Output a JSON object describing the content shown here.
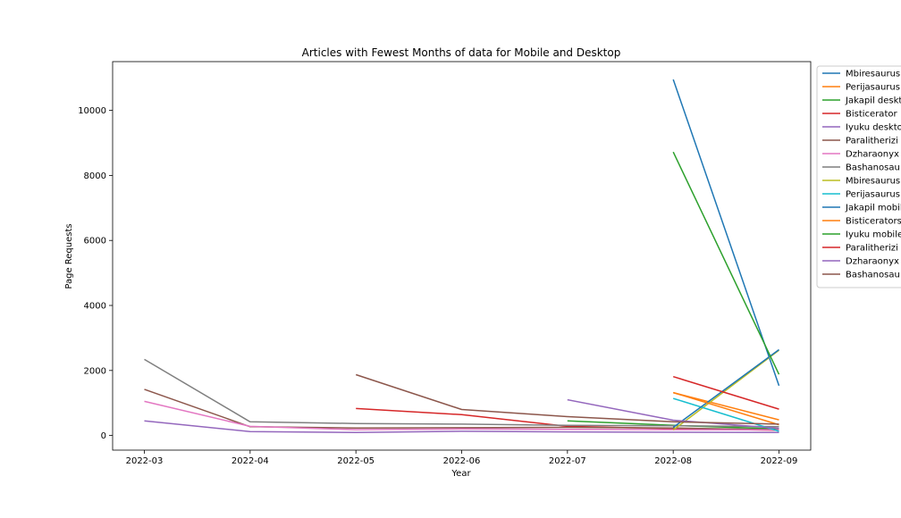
{
  "chart_data": {
    "type": "line",
    "title": "Articles with Fewest Months of data for Mobile and Desktop",
    "xlabel": "Year",
    "ylabel": "Page Requests",
    "x": [
      "2022-03",
      "2022-04",
      "2022-05",
      "2022-06",
      "2022-07",
      "2022-08",
      "2022-09"
    ],
    "xlim": [
      -0.3,
      6.3
    ],
    "ylim": [
      -450,
      11500
    ],
    "yticks": [
      0,
      2000,
      4000,
      6000,
      8000,
      10000
    ],
    "grid": false,
    "legend_position": "upper-right-outside",
    "colors": [
      "#1f77b4",
      "#ff7f0e",
      "#2ca02c",
      "#d62728",
      "#9467bd",
      "#8c564b",
      "#e377c2",
      "#7f7f7f",
      "#bcbd22",
      "#17becf"
    ],
    "series": [
      {
        "name": "Mbiresaurus",
        "values": [
          null,
          null,
          null,
          null,
          null,
          10950,
          1530
        ]
      },
      {
        "name": "Perijasaurus",
        "values": [
          null,
          null,
          null,
          null,
          null,
          1320,
          480
        ]
      },
      {
        "name": "Jakapil deskt",
        "values": [
          null,
          null,
          null,
          null,
          450,
          310,
          200
        ]
      },
      {
        "name": "Bisticerator",
        "values": [
          null,
          null,
          830,
          640,
          280,
          210,
          160
        ]
      },
      {
        "name": "Iyuku deskto",
        "values": [
          450,
          120,
          90,
          130,
          110,
          100,
          90
        ]
      },
      {
        "name": "Paralitherizi",
        "values": [
          1420,
          270,
          230,
          240,
          250,
          230,
          180
        ]
      },
      {
        "name": "Dzharaonyx",
        "values": [
          1050,
          280,
          180,
          200,
          190,
          180,
          170
        ]
      },
      {
        "name": "Bashanosau",
        "values": [
          2340,
          420,
          370,
          350,
          310,
          300,
          270
        ]
      },
      {
        "name": "Mbiresaurus",
        "values": [
          null,
          null,
          null,
          null,
          null,
          170,
          2620
        ]
      },
      {
        "name": "Perijasaurus",
        "values": [
          null,
          null,
          null,
          null,
          null,
          1140,
          130
        ]
      },
      {
        "name": "Jakapil mobil",
        "values": [
          null,
          null,
          null,
          null,
          null,
          250,
          2640
        ]
      },
      {
        "name": "Bisticerators",
        "values": [
          null,
          null,
          null,
          null,
          null,
          1320,
          330
        ]
      },
      {
        "name": "Iyuku mobile",
        "values": [
          null,
          null,
          null,
          null,
          null,
          8720,
          1880
        ]
      },
      {
        "name": "Paralitherizi",
        "values": [
          null,
          null,
          null,
          null,
          null,
          1810,
          810
        ]
      },
      {
        "name": "Dzharaonyx",
        "values": [
          null,
          null,
          null,
          null,
          1100,
          470,
          220
        ]
      },
      {
        "name": "Bashanosau",
        "values": [
          null,
          null,
          1870,
          800,
          580,
          420,
          350
        ]
      }
    ]
  }
}
